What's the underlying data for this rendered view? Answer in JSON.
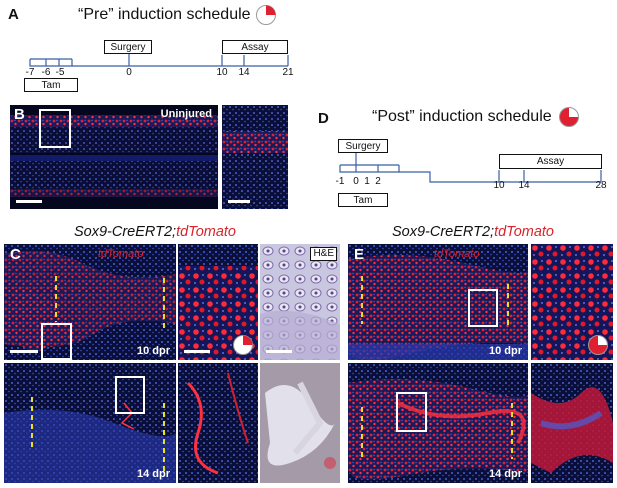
{
  "panels": {
    "A": {
      "letter": "A",
      "title": "“Pre” induction schedule",
      "boxes": {
        "surgery": "Surgery",
        "assay": "Assay",
        "tam": "Tam"
      },
      "ticks": [
        "-7",
        "-6",
        "-5",
        "0",
        "10",
        "14",
        "21"
      ]
    },
    "B": {
      "letter": "B",
      "label": "Uninjured"
    },
    "D": {
      "letter": "D",
      "title": "“Post” induction schedule",
      "boxes": {
        "surgery": "Surgery",
        "assay": "Assay",
        "tam": "Tam"
      },
      "ticks": [
        "-1",
        "0",
        "1",
        "2",
        "10",
        "14",
        "28"
      ]
    },
    "C": {
      "letter": "C",
      "genotype_prefix": "Sox9-CreERT2;",
      "genotype_reporter": "tdTomato",
      "stain_label": "tdTomato",
      "he_label": "H&E",
      "top_label": "10 dpr",
      "bottom_label": "14 dpr"
    },
    "E": {
      "letter": "E",
      "genotype_prefix": "Sox9-CreERT2;",
      "genotype_reporter": "tdTomato",
      "stain_label": "tdTomato",
      "top_label": "10 dpr",
      "bottom_label": "14 dpr"
    }
  },
  "colors": {
    "timeline": "#3a5fa8",
    "tdTomato": "#d9232a",
    "dapi": "#1b2a8c",
    "background": "#000000"
  }
}
